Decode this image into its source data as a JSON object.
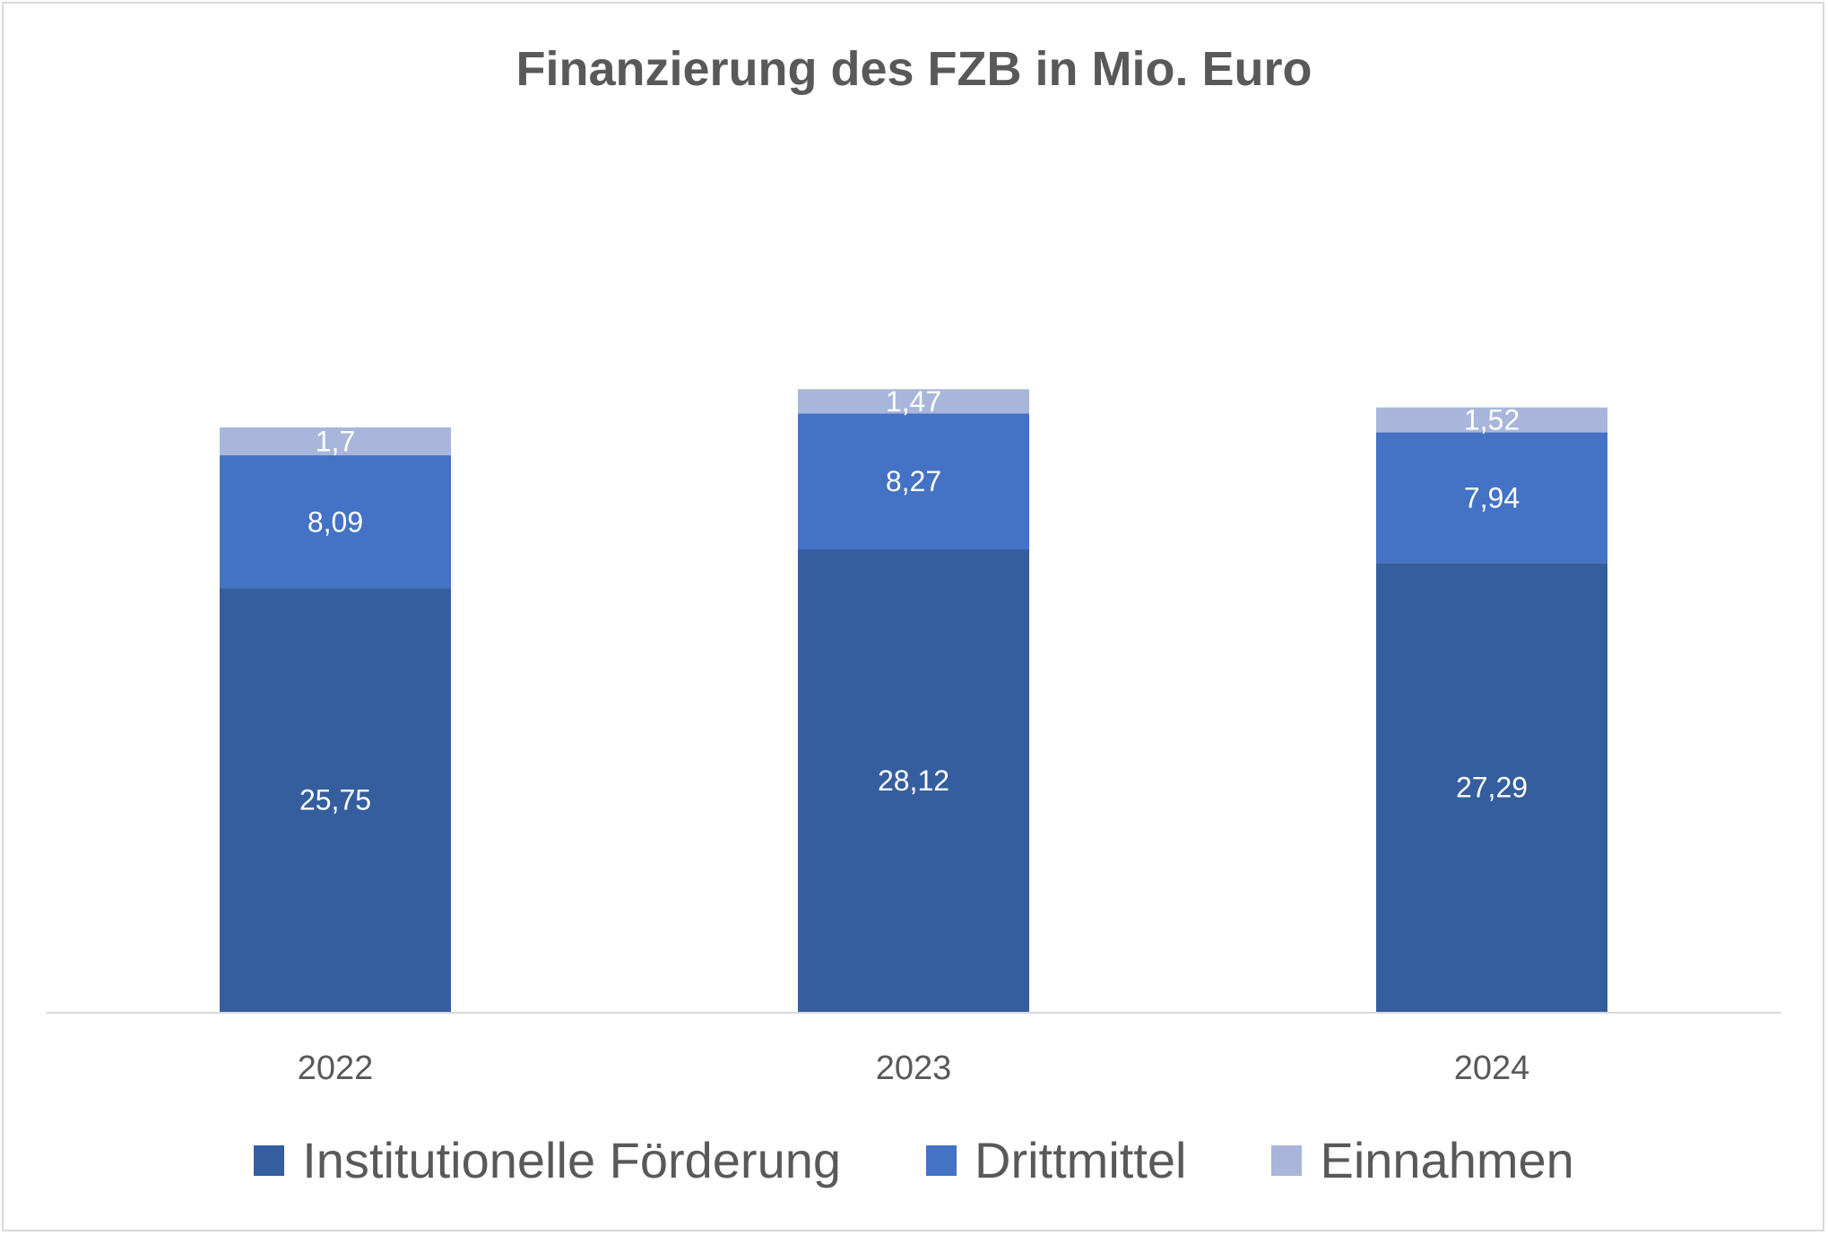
{
  "chart_data": {
    "type": "bar",
    "stacked": true,
    "title": "Finanzierung des FZB in Mio. Euro",
    "categories": [
      "2022",
      "2023",
      "2024"
    ],
    "series": [
      {
        "name": "Institutionelle Förderung",
        "values": [
          25.75,
          28.12,
          27.29
        ],
        "labels": [
          "25,75",
          "28,12",
          "27,29"
        ],
        "color": "#355e9f"
      },
      {
        "name": "Drittmittel",
        "values": [
          8.09,
          8.27,
          7.94
        ],
        "labels": [
          "8,09",
          "8,27",
          "7,94"
        ],
        "color": "#4472c4"
      },
      {
        "name": "Einnahmen",
        "values": [
          1.7,
          1.47,
          1.52
        ],
        "labels": [
          "1,7",
          "1,47",
          "1,52"
        ],
        "color": "#a8b6db"
      }
    ],
    "ylim": [
      0,
      40
    ],
    "grid": false,
    "legend_position": "bottom",
    "data_label_color": "#ffffff",
    "axis_color": "#d9d9d9",
    "text_color": "#595959"
  }
}
